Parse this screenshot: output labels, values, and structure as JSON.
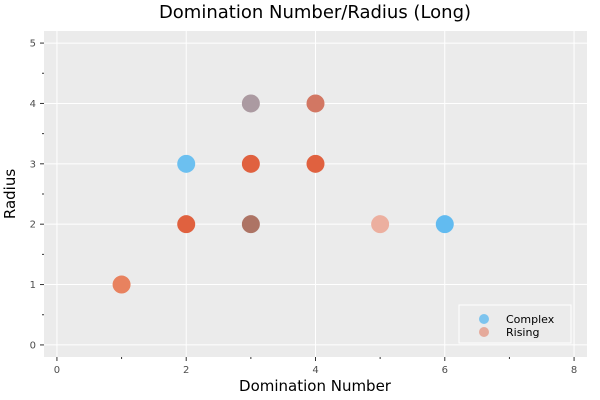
{
  "chart_data": {
    "type": "scatter",
    "title": "Domination Number/Radius (Long)",
    "xlabel": "Domination Number",
    "ylabel": "Radius",
    "xlim": [
      -0.2,
      8.2
    ],
    "ylim": [
      -0.2,
      5.2
    ],
    "x_ticks": [
      0,
      2,
      4,
      6,
      8
    ],
    "y_ticks": [
      0,
      1,
      2,
      3,
      4,
      5
    ],
    "x_minor_ticks": [
      1,
      3,
      5,
      7
    ],
    "y_minor_ticks": [
      0.5,
      1.5,
      2.5,
      3.5,
      4.5
    ],
    "grid": true,
    "legend_position": "bottom-right",
    "series": [
      {
        "name": "Complex",
        "color": "#4fb3f0",
        "points": [
          {
            "x": 2,
            "y": 3
          },
          {
            "x": 2,
            "y": 2
          },
          {
            "x": 3,
            "y": 4
          },
          {
            "x": 3,
            "y": 3
          },
          {
            "x": 3,
            "y": 2
          },
          {
            "x": 4,
            "y": 3
          },
          {
            "x": 6,
            "y": 2
          }
        ]
      },
      {
        "name": "Rising",
        "color": "#e0745a",
        "points": [
          {
            "x": 1,
            "y": 1
          },
          {
            "x": 2,
            "y": 2
          },
          {
            "x": 3,
            "y": 3
          },
          {
            "x": 3,
            "y": 2
          },
          {
            "x": 3,
            "y": 4
          },
          {
            "x": 4,
            "y": 4
          },
          {
            "x": 4,
            "y": 3
          },
          {
            "x": 5,
            "y": 2
          }
        ]
      }
    ],
    "overlay_colors": {
      "2,2": "#e0613f",
      "3,3": "#e0613f",
      "4,3": "#e0613f",
      "3,2": "#ad7465",
      "3,4": "#ab9aa1",
      "4,4": "#d27763",
      "1,1": "#e8825f",
      "5,2": "#ecaf9f",
      "2,3": "#6cc0f0",
      "6,2": "#62bbf0"
    }
  },
  "colors": {
    "plot_background": "#ebebeb",
    "grid": "#ffffff",
    "page_background": "#ffffff"
  }
}
